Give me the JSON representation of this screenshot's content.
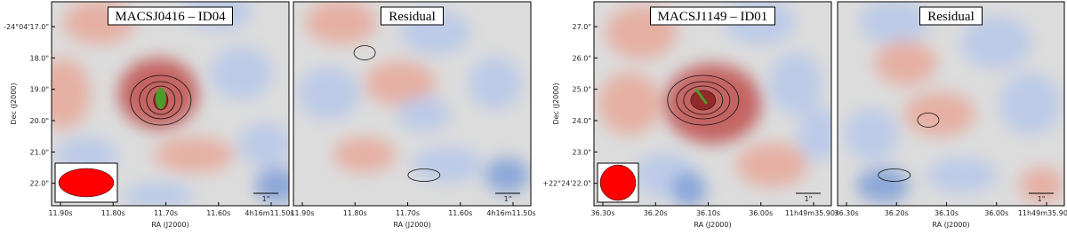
{
  "panels": [
    {
      "title": "MACSJ0416 – ID04",
      "ylabel": "Dec (J2000)",
      "yticks": [
        "-24°04'17.0\"",
        "18.0\"",
        "19.0\"",
        "20.0\"",
        "21.0\"",
        "22.0\""
      ],
      "xticks": [
        "11.90s",
        "11.80s",
        "11.70s",
        "11.60s",
        "4h16m11.50s"
      ],
      "xlabel": "RA (J2000)",
      "scale_label": "1\""
    },
    {
      "title": "Residual",
      "xticks": [
        "11.90s",
        "11.80s",
        "11.70s",
        "11.60s",
        "4h16m11.50s"
      ],
      "xlabel": "RA (J2000)",
      "scale_label": "1\""
    },
    {
      "title": "MACSJ1149 – ID01",
      "ylabel": "Dec (J2000)",
      "yticks": [
        "27.0\"",
        "26.0\"",
        "25.0\"",
        "24.0\"",
        "23.0\"",
        "+22°24'22.0\""
      ],
      "xticks": [
        "36.30s",
        "36.20s",
        "36.10s",
        "36.00s",
        "11h49m35.90s"
      ],
      "xlabel": "RA (J2000)",
      "scale_label": "1\""
    },
    {
      "title": "Residual",
      "xticks": [
        "36.30s",
        "36.20s",
        "36.10s",
        "36.00s",
        "11h49m35.90s"
      ],
      "xlabel": "RA (J2000)",
      "scale_label": "1\""
    }
  ]
}
